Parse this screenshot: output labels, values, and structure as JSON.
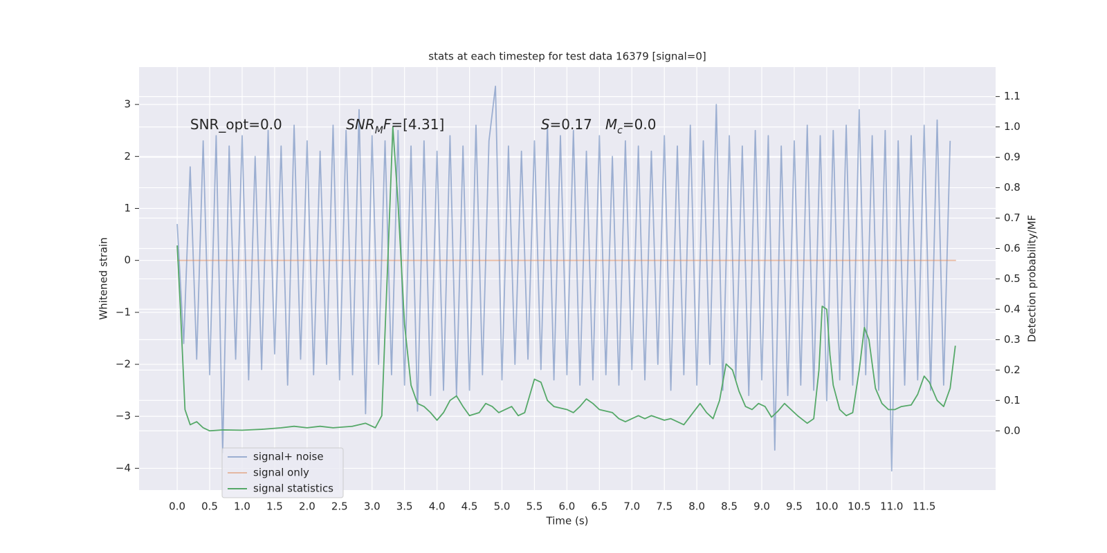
{
  "chart_data": {
    "type": "line",
    "title": "stats at each timestep for test data 16379 [signal=0]",
    "xlabel": "Time (s)",
    "ylabel": "Whitened strain",
    "y2label": "Detection probability/MF",
    "xlim": [
      -0.587,
      12.6
    ],
    "ylim": [
      -4.42,
      3.72
    ],
    "y2lim": [
      -0.195,
      1.197
    ],
    "xticks": [
      {
        "value": 0,
        "label": "0.0"
      },
      0.5,
      {
        "value": 1,
        "label": "1.0"
      },
      1.5,
      {
        "value": 2,
        "label": "2.0"
      },
      2.5,
      {
        "value": 3,
        "label": "3.0"
      },
      3.5,
      {
        "value": 4,
        "label": "4.0"
      },
      4.5,
      {
        "value": 5,
        "label": "5.0"
      },
      5.5,
      {
        "value": 6,
        "label": "6.0"
      },
      6.5,
      {
        "value": 7,
        "label": "7.0"
      },
      7.5,
      {
        "value": 8,
        "label": "8.0"
      },
      8.5,
      {
        "value": 9,
        "label": "9.0"
      },
      9.5,
      {
        "value": 10,
        "label": "10.0"
      },
      10.5,
      {
        "value": 11,
        "label": "11.0"
      },
      11.5
    ],
    "yticks": [
      {
        "value": -4,
        "label": "−4"
      },
      {
        "value": -3,
        "label": "−3"
      },
      {
        "value": -2,
        "label": "−2"
      },
      {
        "value": -1,
        "label": "−1"
      },
      0,
      1,
      2,
      3
    ],
    "y2ticks": [
      {
        "value": 0,
        "label": "0.0"
      },
      0.1,
      0.2,
      0.3,
      0.4,
      0.5,
      0.6,
      0.7,
      0.8,
      0.9,
      {
        "value": 1,
        "label": "1.0"
      },
      1.1
    ],
    "grid": true,
    "legend": "lower left",
    "annotations": [
      {
        "x": 0.2,
        "y": 2.6,
        "parts": [
          {
            "text": "SNR_opt=0.0"
          }
        ]
      },
      {
        "x": 2.6,
        "y": 2.6,
        "parts": [
          {
            "text": "SNR",
            "italic": true
          },
          {
            "text": "M",
            "italic": true,
            "sub": true
          },
          {
            "text": "F",
            "italic": true
          },
          {
            "text": "=[4.31]"
          }
        ]
      },
      {
        "x": 5.6,
        "y": 2.6,
        "parts": [
          {
            "text": "S",
            "italic": true
          },
          {
            "text": "=0.17   "
          },
          {
            "text": "M",
            "italic": true
          },
          {
            "text": "c",
            "italic": true,
            "sub": true
          },
          {
            "text": "=0.0"
          }
        ]
      }
    ],
    "series": [
      {
        "name": "signal+ noise",
        "color": "#4c72b0",
        "opacity": 0.5,
        "x": [
          0.0,
          0.1,
          0.2,
          0.3,
          0.4,
          0.5,
          0.6,
          0.7,
          0.8,
          0.9,
          1.0,
          1.1,
          1.2,
          1.3,
          1.4,
          1.5,
          1.6,
          1.7,
          1.8,
          1.9,
          2.0,
          2.1,
          2.2,
          2.3,
          2.4,
          2.5,
          2.6,
          2.7,
          2.8,
          2.9,
          3.0,
          3.1,
          3.2,
          3.3,
          3.4,
          3.5,
          3.6,
          3.7,
          3.8,
          3.9,
          4.0,
          4.1,
          4.2,
          4.3,
          4.4,
          4.5,
          4.6,
          4.7,
          4.8,
          4.9,
          5.0,
          5.1,
          5.2,
          5.3,
          5.4,
          5.5,
          5.6,
          5.7,
          5.8,
          5.9,
          6.0,
          6.1,
          6.2,
          6.3,
          6.4,
          6.5,
          6.6,
          6.7,
          6.8,
          6.9,
          7.0,
          7.1,
          7.2,
          7.3,
          7.4,
          7.5,
          7.6,
          7.7,
          7.8,
          7.9,
          8.0,
          8.1,
          8.2,
          8.3,
          8.4,
          8.5,
          8.6,
          8.7,
          8.8,
          8.9,
          9.0,
          9.1,
          9.2,
          9.3,
          9.4,
          9.5,
          9.6,
          9.7,
          9.8,
          9.9,
          10.0,
          10.1,
          10.2,
          10.3,
          10.4,
          10.5,
          10.6,
          10.7,
          10.8,
          10.9,
          11.0,
          11.1,
          11.2,
          11.3,
          11.4,
          11.5,
          11.6,
          11.7,
          11.8,
          11.9
        ],
        "values": [
          0.7,
          -1.6,
          1.8,
          -1.9,
          2.3,
          -2.2,
          2.4,
          -3.7,
          2.2,
          -1.9,
          2.4,
          -2.3,
          2.0,
          -2.1,
          2.5,
          -1.8,
          2.2,
          -2.4,
          2.6,
          -1.9,
          2.3,
          -2.2,
          2.1,
          -2.0,
          2.6,
          -2.3,
          2.5,
          -2.2,
          2.9,
          -2.95,
          2.4,
          -2.0,
          2.3,
          -2.2,
          2.5,
          -2.4,
          2.2,
          -2.9,
          2.3,
          -2.6,
          2.1,
          -2.5,
          2.4,
          -2.6,
          2.2,
          -2.5,
          2.6,
          -2.2,
          2.3,
          3.35,
          -2.3,
          2.2,
          -2.0,
          2.1,
          -1.9,
          2.3,
          -2.1,
          2.6,
          -2.3,
          2.4,
          -2.2,
          2.5,
          -2.4,
          2.1,
          -2.3,
          2.4,
          -2.2,
          2.0,
          -2.4,
          2.3,
          -2.1,
          2.2,
          -2.3,
          2.1,
          -2.0,
          2.4,
          -2.5,
          2.2,
          -2.2,
          2.6,
          -2.4,
          2.3,
          -2.0,
          3.0,
          -2.5,
          2.4,
          -2.3,
          2.2,
          -2.6,
          2.5,
          -2.3,
          2.4,
          -3.65,
          2.2,
          -2.6,
          2.3,
          -2.4,
          2.6,
          -2.5,
          2.4,
          -2.7,
          2.5,
          -2.3,
          2.6,
          -2.4,
          2.9,
          -2.2,
          2.4,
          -2.5,
          2.5,
          -4.05,
          2.3,
          -2.4,
          2.4,
          -2.3,
          2.6,
          -2.5,
          2.7,
          -2.4,
          2.3
        ]
      },
      {
        "name": "signal only",
        "color": "#dd8452",
        "opacity": 0.5,
        "x": [
          0.0,
          11.99
        ],
        "values": [
          0,
          0
        ]
      },
      {
        "name": "signal statistics",
        "color": "#55a868",
        "opacity": 1,
        "axis": "y2",
        "x": [
          0.0,
          0.05,
          0.12,
          0.2,
          0.3,
          0.4,
          0.5,
          0.7,
          1.0,
          1.3,
          1.6,
          1.8,
          2.0,
          2.2,
          2.4,
          2.7,
          2.9,
          3.05,
          3.15,
          3.25,
          3.32,
          3.4,
          3.5,
          3.6,
          3.7,
          3.8,
          3.9,
          4.0,
          4.1,
          4.2,
          4.3,
          4.4,
          4.5,
          4.65,
          4.75,
          4.85,
          4.95,
          5.05,
          5.15,
          5.25,
          5.35,
          5.5,
          5.6,
          5.7,
          5.8,
          6.0,
          6.1,
          6.2,
          6.3,
          6.4,
          6.5,
          6.7,
          6.8,
          6.9,
          7.0,
          7.1,
          7.2,
          7.3,
          7.5,
          7.6,
          7.8,
          8.05,
          8.15,
          8.25,
          8.35,
          8.45,
          8.55,
          8.65,
          8.75,
          8.85,
          8.95,
          9.05,
          9.15,
          9.25,
          9.35,
          9.45,
          9.55,
          9.7,
          9.8,
          9.88,
          9.93,
          10.0,
          10.05,
          10.1,
          10.2,
          10.3,
          10.4,
          10.5,
          10.58,
          10.65,
          10.75,
          10.85,
          10.95,
          11.05,
          11.15,
          11.3,
          11.4,
          11.5,
          11.58,
          11.7,
          11.8,
          11.9,
          11.98
        ],
        "values": [
          0.61,
          0.4,
          0.07,
          0.02,
          0.03,
          0.01,
          0.0,
          0.003,
          0.002,
          0.005,
          0.01,
          0.015,
          0.01,
          0.015,
          0.01,
          0.015,
          0.025,
          0.01,
          0.05,
          0.6,
          1.0,
          0.75,
          0.35,
          0.15,
          0.09,
          0.08,
          0.06,
          0.035,
          0.06,
          0.1,
          0.115,
          0.08,
          0.05,
          0.06,
          0.09,
          0.08,
          0.06,
          0.07,
          0.08,
          0.05,
          0.06,
          0.17,
          0.16,
          0.1,
          0.08,
          0.07,
          0.06,
          0.08,
          0.105,
          0.09,
          0.07,
          0.06,
          0.04,
          0.03,
          0.04,
          0.05,
          0.04,
          0.05,
          0.035,
          0.04,
          0.02,
          0.09,
          0.06,
          0.04,
          0.1,
          0.22,
          0.2,
          0.13,
          0.08,
          0.07,
          0.09,
          0.08,
          0.045,
          0.065,
          0.09,
          0.07,
          0.05,
          0.025,
          0.04,
          0.2,
          0.41,
          0.4,
          0.25,
          0.15,
          0.07,
          0.05,
          0.06,
          0.2,
          0.34,
          0.3,
          0.14,
          0.09,
          0.07,
          0.07,
          0.08,
          0.085,
          0.12,
          0.18,
          0.16,
          0.1,
          0.08,
          0.14,
          0.28
        ]
      }
    ]
  }
}
